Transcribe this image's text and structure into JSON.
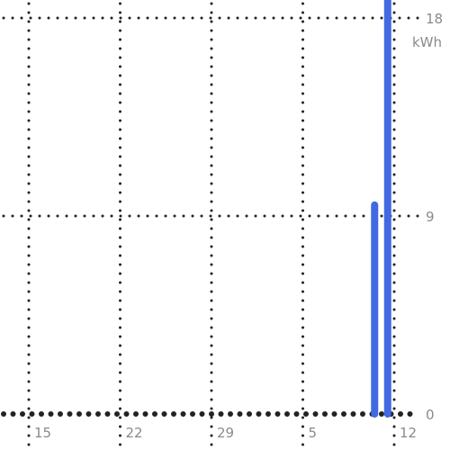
{
  "chart_data": {
    "type": "bar",
    "unit": "kWh",
    "x_ticks": [
      "15",
      "22",
      "29",
      "5",
      "12"
    ],
    "y_ticks": [
      "0",
      "9",
      "18"
    ],
    "ylim": [
      0,
      18
    ],
    "grid": true,
    "bar_color": "#4169e1",
    "bars": [
      {
        "day_index": 26.5,
        "value": 9.5
      },
      {
        "day_index": 27.5,
        "value": 19.3
      }
    ]
  }
}
